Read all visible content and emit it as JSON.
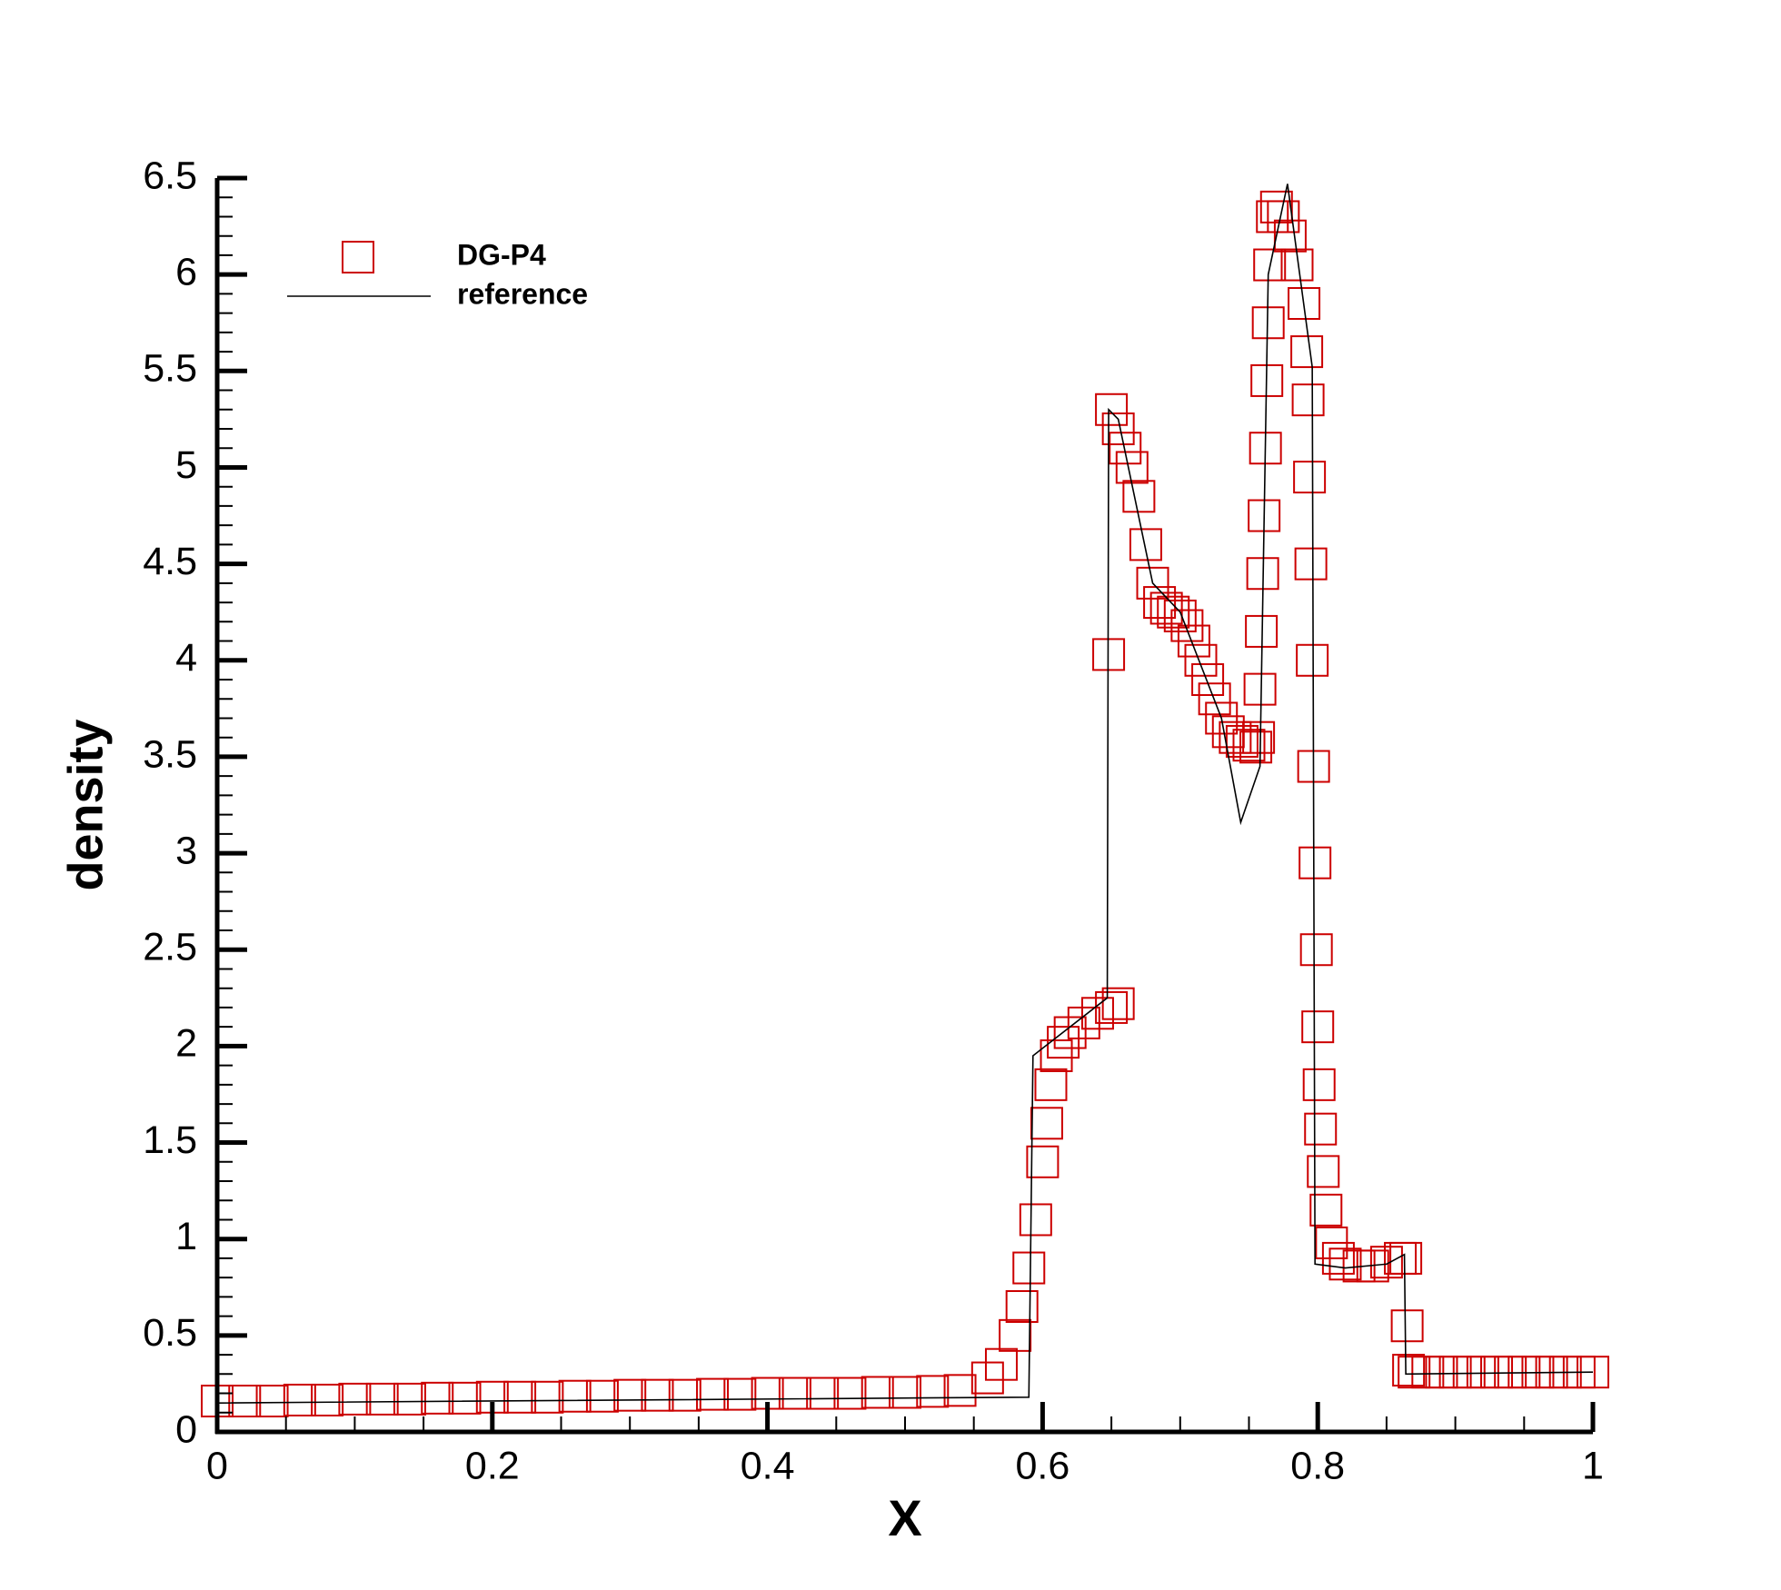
{
  "chart_data": {
    "type": "scatter",
    "xlabel": "X",
    "ylabel": "density",
    "xlim": [
      0,
      1
    ],
    "ylim": [
      0,
      6.5
    ],
    "xticks": [
      0,
      0.2,
      0.4,
      0.6,
      0.8,
      1
    ],
    "yticks": [
      0,
      0.5,
      1,
      1.5,
      2,
      2.5,
      3,
      3.5,
      4,
      4.5,
      5,
      5.5,
      6,
      6.5
    ],
    "xminorticks": [
      0.05,
      0.1,
      0.15,
      0.25,
      0.3,
      0.35,
      0.45,
      0.5,
      0.55,
      0.65,
      0.7,
      0.75,
      0.85,
      0.9,
      0.95
    ],
    "yminorticks": [
      0.1,
      0.2,
      0.3,
      0.4,
      0.6,
      0.7,
      0.8,
      0.9,
      1.1,
      1.2,
      1.3,
      1.4,
      1.6,
      1.7,
      1.8,
      1.9,
      2.1,
      2.2,
      2.3,
      2.4,
      2.6,
      2.7,
      2.8,
      2.9,
      3.1,
      3.2,
      3.3,
      3.4,
      3.6,
      3.7,
      3.8,
      3.9,
      4.1,
      4.2,
      4.3,
      4.4,
      4.6,
      4.7,
      4.8,
      4.9,
      5.1,
      5.2,
      5.3,
      5.4,
      5.6,
      5.7,
      5.8,
      5.9,
      6.1,
      6.2,
      6.3,
      6.4
    ],
    "legend": "upper left",
    "series": [
      {
        "name": "DG-P4",
        "color": "#cc0000",
        "marker": "square",
        "x": [
          0,
          0.02,
          0.04,
          0.06,
          0.08,
          0.1,
          0.12,
          0.14,
          0.16,
          0.18,
          0.2,
          0.22,
          0.24,
          0.26,
          0.28,
          0.3,
          0.32,
          0.34,
          0.36,
          0.38,
          0.4,
          0.42,
          0.44,
          0.46,
          0.48,
          0.5,
          0.52,
          0.54,
          0.56,
          0.57,
          0.58,
          0.585,
          0.59,
          0.595,
          0.6,
          0.603,
          0.606,
          0.61,
          0.615,
          0.62,
          0.63,
          0.64,
          0.65,
          0.655,
          0.648,
          0.65,
          0.655,
          0.66,
          0.665,
          0.67,
          0.675,
          0.68,
          0.685,
          0.69,
          0.695,
          0.7,
          0.705,
          0.71,
          0.715,
          0.72,
          0.725,
          0.73,
          0.735,
          0.74,
          0.745,
          0.75,
          0.755,
          0.757,
          0.758,
          0.759,
          0.76,
          0.761,
          0.762,
          0.763,
          0.764,
          0.765,
          0.767,
          0.77,
          0.775,
          0.78,
          0.785,
          0.79,
          0.792,
          0.793,
          0.794,
          0.795,
          0.796,
          0.797,
          0.798,
          0.799,
          0.8,
          0.801,
          0.802,
          0.804,
          0.806,
          0.81,
          0.815,
          0.82,
          0.83,
          0.84,
          0.85,
          0.86,
          0.864,
          0.865,
          0.866,
          0.87,
          0.88,
          0.89,
          0.9,
          0.91,
          0.92,
          0.93,
          0.94,
          0.95,
          0.96,
          0.97,
          0.98,
          0.99,
          1.0
        ],
        "values": [
          0.16,
          0.16,
          0.16,
          0.165,
          0.165,
          0.17,
          0.17,
          0.17,
          0.175,
          0.175,
          0.18,
          0.18,
          0.18,
          0.185,
          0.185,
          0.19,
          0.19,
          0.19,
          0.195,
          0.195,
          0.2,
          0.2,
          0.2,
          0.2,
          0.205,
          0.205,
          0.21,
          0.215,
          0.28,
          0.35,
          0.5,
          0.65,
          0.85,
          1.1,
          1.4,
          1.6,
          1.8,
          1.95,
          2.02,
          2.07,
          2.12,
          2.17,
          2.2,
          2.22,
          4.03,
          5.3,
          5.2,
          5.1,
          5.0,
          4.85,
          4.6,
          4.4,
          4.3,
          4.27,
          4.25,
          4.23,
          4.18,
          4.1,
          4.0,
          3.9,
          3.8,
          3.7,
          3.63,
          3.6,
          3.58,
          3.56,
          3.55,
          3.6,
          3.85,
          4.15,
          4.45,
          4.75,
          5.1,
          5.45,
          5.75,
          6.05,
          6.3,
          6.35,
          6.3,
          6.2,
          6.05,
          5.85,
          5.6,
          5.35,
          4.95,
          4.5,
          4.0,
          3.45,
          2.95,
          2.5,
          2.1,
          1.8,
          1.57,
          1.35,
          1.15,
          0.98,
          0.9,
          0.87,
          0.86,
          0.86,
          0.88,
          0.9,
          0.9,
          0.55,
          0.32,
          0.31,
          0.31,
          0.31,
          0.31,
          0.31,
          0.31,
          0.31,
          0.31,
          0.31,
          0.31,
          0.31,
          0.31,
          0.31,
          0.31
        ]
      },
      {
        "name": "reference",
        "color": "#000000",
        "marker": "none",
        "x": [
          0,
          0.59,
          0.593,
          0.647,
          0.648,
          0.655,
          0.68,
          0.7,
          0.73,
          0.744,
          0.758,
          0.764,
          0.778,
          0.796,
          0.798,
          0.82,
          0.85,
          0.863,
          0.864,
          1.0
        ],
        "values": [
          0.15,
          0.18,
          1.95,
          2.25,
          5.3,
          5.25,
          4.4,
          4.25,
          3.7,
          3.16,
          3.45,
          6.0,
          6.47,
          5.52,
          0.87,
          0.85,
          0.87,
          0.92,
          0.3,
          0.31
        ]
      }
    ]
  }
}
